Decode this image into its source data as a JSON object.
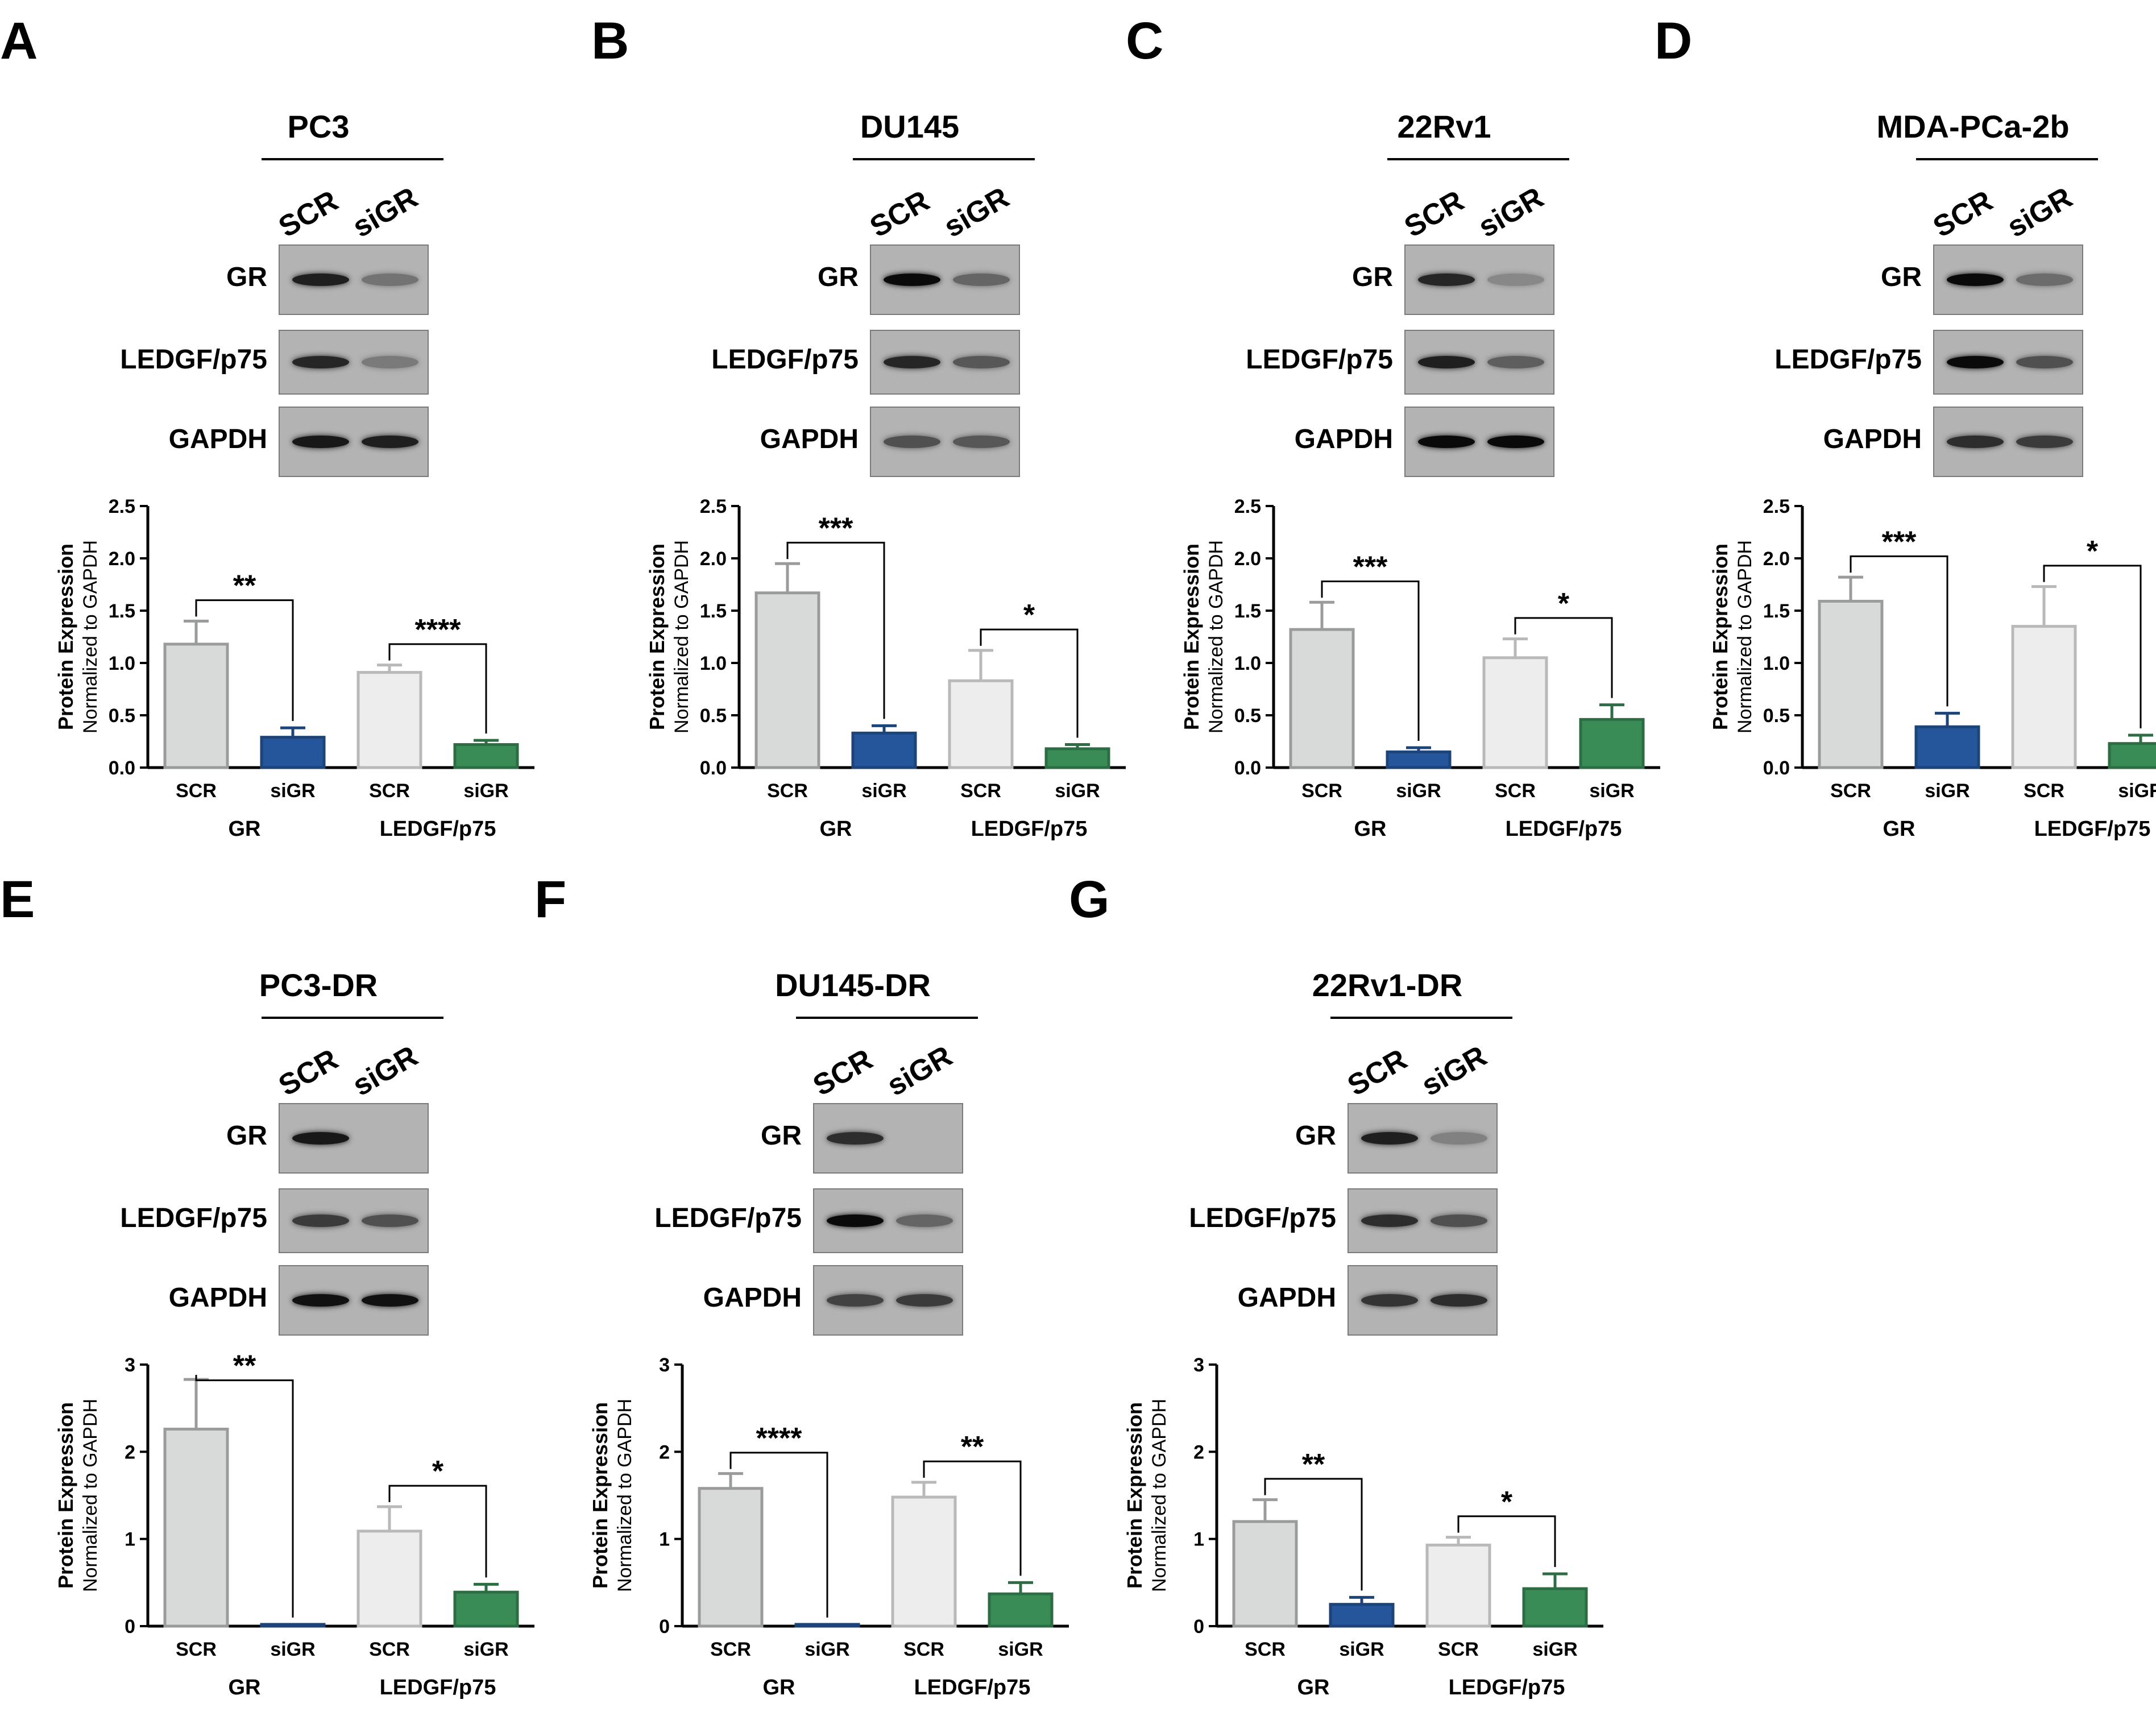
{
  "colors": {
    "scr_gr": "#d8dad9",
    "sigr_gr": "#25569b",
    "scr_ledgf": "#ecedec",
    "sigr_ledgf": "#3a8c57"
  },
  "chart_data": [
    {
      "panel": "A",
      "cell_line": "PC3",
      "type": "bar",
      "ylabel": "Protein Expression",
      "ylabel2": "Normalized to GAPDH",
      "ylim": [
        0,
        2.5
      ],
      "yticks": [
        "0.0",
        "0.5",
        "1.0",
        "1.5",
        "2.0",
        "2.5"
      ],
      "categories": [
        "SCR",
        "siGR",
        "SCR",
        "siGR"
      ],
      "groups": [
        "GR",
        "LEDGF/p75"
      ],
      "values": [
        1.18,
        0.29,
        0.91,
        0.22
      ],
      "errors": [
        0.22,
        0.09,
        0.07,
        0.04
      ],
      "sig": [
        {
          "label": "**",
          "pair": [
            0,
            1
          ]
        },
        {
          "label": "****",
          "pair": [
            2,
            3
          ]
        }
      ],
      "blots": [
        "GR",
        "LEDGF/p75",
        "GAPDH"
      ],
      "lanes": [
        "SCR",
        "siGR"
      ]
    },
    {
      "panel": "B",
      "cell_line": "DU145",
      "type": "bar",
      "ylabel": "Protein Expression",
      "ylabel2": "Normalized to GAPDH",
      "ylim": [
        0,
        2.5
      ],
      "yticks": [
        "0.0",
        "0.5",
        "1.0",
        "1.5",
        "2.0",
        "2.5"
      ],
      "categories": [
        "SCR",
        "siGR",
        "SCR",
        "siGR"
      ],
      "groups": [
        "GR",
        "LEDGF/p75"
      ],
      "values": [
        1.67,
        0.33,
        0.83,
        0.18
      ],
      "errors": [
        0.28,
        0.07,
        0.29,
        0.04
      ],
      "sig": [
        {
          "label": "***",
          "pair": [
            0,
            1
          ]
        },
        {
          "label": "*",
          "pair": [
            2,
            3
          ]
        }
      ],
      "blots": [
        "GR",
        "LEDGF/p75",
        "GAPDH"
      ],
      "lanes": [
        "SCR",
        "siGR"
      ]
    },
    {
      "panel": "C",
      "cell_line": "22Rv1",
      "type": "bar",
      "ylabel": "Protein Expression",
      "ylabel2": "Normalized to GAPDH",
      "ylim": [
        0,
        2.5
      ],
      "yticks": [
        "0.0",
        "0.5",
        "1.0",
        "1.5",
        "2.0",
        "2.5"
      ],
      "categories": [
        "SCR",
        "siGR",
        "SCR",
        "siGR"
      ],
      "groups": [
        "GR",
        "LEDGF/p75"
      ],
      "values": [
        1.32,
        0.15,
        1.05,
        0.46
      ],
      "errors": [
        0.26,
        0.04,
        0.18,
        0.14
      ],
      "sig": [
        {
          "label": "***",
          "pair": [
            0,
            1
          ]
        },
        {
          "label": "*",
          "pair": [
            2,
            3
          ]
        }
      ],
      "blots": [
        "GR",
        "LEDGF/p75",
        "GAPDH"
      ],
      "lanes": [
        "SCR",
        "siGR"
      ]
    },
    {
      "panel": "D",
      "cell_line": "MDA-PCa-2b",
      "type": "bar",
      "ylabel": "Protein Expression",
      "ylabel2": "Normalized to GAPDH",
      "ylim": [
        0,
        2.5
      ],
      "yticks": [
        "0.0",
        "0.5",
        "1.0",
        "1.5",
        "2.0",
        "2.5"
      ],
      "categories": [
        "SCR",
        "siGR",
        "SCR",
        "siGR"
      ],
      "groups": [
        "GR",
        "LEDGF/p75"
      ],
      "values": [
        1.59,
        0.39,
        1.35,
        0.23
      ],
      "errors": [
        0.23,
        0.13,
        0.38,
        0.08
      ],
      "sig": [
        {
          "label": "***",
          "pair": [
            0,
            1
          ]
        },
        {
          "label": "*",
          "pair": [
            2,
            3
          ]
        }
      ],
      "blots": [
        "GR",
        "LEDGF/p75",
        "GAPDH"
      ],
      "lanes": [
        "SCR",
        "siGR"
      ]
    },
    {
      "panel": "E",
      "cell_line": "PC3-DR",
      "type": "bar",
      "ylabel": "Protein Expression",
      "ylabel2": "Normalized to GAPDH",
      "ylim": [
        0,
        3
      ],
      "yticks": [
        "0",
        "1",
        "2",
        "3"
      ],
      "categories": [
        "SCR",
        "siGR",
        "SCR",
        "siGR"
      ],
      "groups": [
        "GR",
        "LEDGF/p75"
      ],
      "values": [
        2.26,
        0.02,
        1.09,
        0.39
      ],
      "errors": [
        0.57,
        0.0,
        0.28,
        0.09
      ],
      "sig": [
        {
          "label": "**",
          "pair": [
            0,
            1
          ]
        },
        {
          "label": "*",
          "pair": [
            2,
            3
          ]
        }
      ],
      "blots": [
        "GR",
        "LEDGF/p75",
        "GAPDH"
      ],
      "lanes": [
        "SCR",
        "siGR"
      ]
    },
    {
      "panel": "F",
      "cell_line": "DU145-DR",
      "type": "bar",
      "ylabel": "Protein Expression",
      "ylabel2": "Normalized to GAPDH",
      "ylim": [
        0,
        3
      ],
      "yticks": [
        "0",
        "1",
        "2",
        "3"
      ],
      "categories": [
        "SCR",
        "siGR",
        "SCR",
        "siGR"
      ],
      "groups": [
        "GR",
        "LEDGF/p75"
      ],
      "values": [
        1.58,
        0.02,
        1.48,
        0.37
      ],
      "errors": [
        0.17,
        0.0,
        0.17,
        0.13
      ],
      "sig": [
        {
          "label": "****",
          "pair": [
            0,
            1
          ]
        },
        {
          "label": "**",
          "pair": [
            2,
            3
          ]
        }
      ],
      "blots": [
        "GR",
        "LEDGF/p75",
        "GAPDH"
      ],
      "lanes": [
        "SCR",
        "siGR"
      ]
    },
    {
      "panel": "G",
      "cell_line": "22Rv1-DR",
      "type": "bar",
      "ylabel": "Protein Expression",
      "ylabel2": "Normalized to GAPDH",
      "ylim": [
        0,
        3
      ],
      "yticks": [
        "0",
        "1",
        "2",
        "3"
      ],
      "categories": [
        "SCR",
        "siGR",
        "SCR",
        "siGR"
      ],
      "groups": [
        "GR",
        "LEDGF/p75"
      ],
      "values": [
        1.2,
        0.25,
        0.93,
        0.43
      ],
      "errors": [
        0.25,
        0.08,
        0.09,
        0.17
      ],
      "sig": [
        {
          "label": "**",
          "pair": [
            0,
            1
          ]
        },
        {
          "label": "*",
          "pair": [
            2,
            3
          ]
        }
      ],
      "blots": [
        "GR",
        "LEDGF/p75",
        "GAPDH"
      ],
      "lanes": [
        "SCR",
        "siGR"
      ]
    }
  ]
}
